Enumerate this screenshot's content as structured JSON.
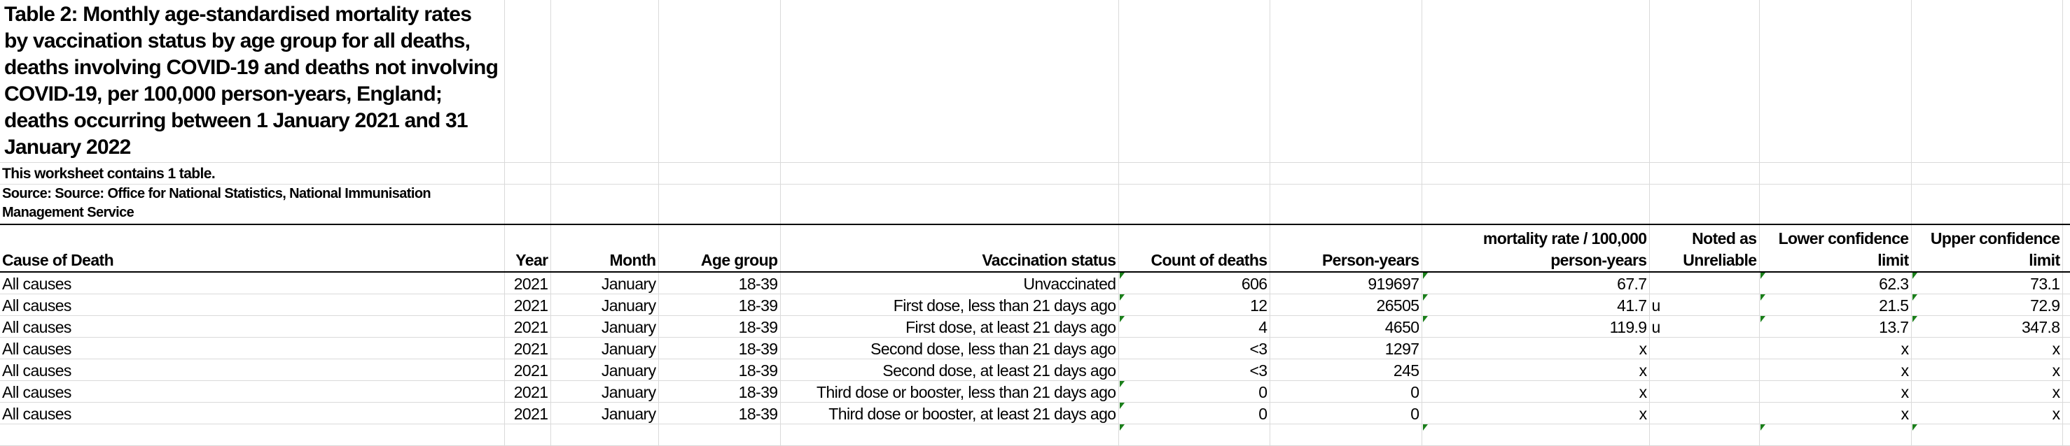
{
  "title": "Table 2: Monthly age-standardised mortality rates by vaccination status by age group for all deaths, deaths involving COVID-19 and deaths not involving COVID-19, per 100,000 person-years, England; deaths occurring between 1 January 2021 and 31 January 2022",
  "note": "This worksheet contains 1 table.",
  "source": "Source: Source: Office for National Statistics, National Immunisation Management Service",
  "flag_color": "#1a7f1a",
  "headers": [
    "Cause of Death",
    "Year",
    "Month",
    "Age group",
    "Vaccination status",
    "Count of deaths",
    "Person-years",
    "mortality rate / 100,000 person-years",
    "Noted as Unreliable",
    "Lower confidence limit",
    "Upper confidence limit"
  ],
  "rows": [
    [
      "All causes",
      "2021",
      "January",
      "18-39",
      "Unvaccinated",
      "606",
      "919697",
      "67.7",
      "",
      "62.3",
      "73.1"
    ],
    [
      "All causes",
      "2021",
      "January",
      "18-39",
      "First dose, less than 21 days ago",
      "12",
      "26505",
      "41.7",
      "u",
      "21.5",
      "72.9"
    ],
    [
      "All causes",
      "2021",
      "January",
      "18-39",
      "First dose, at least 21 days ago",
      "4",
      "4650",
      "119.9",
      "u",
      "13.7",
      "347.8"
    ],
    [
      "All causes",
      "2021",
      "January",
      "18-39",
      "Second dose, less than 21 days ago",
      "<3",
      "1297",
      "x",
      "",
      "x",
      "x"
    ],
    [
      "All causes",
      "2021",
      "January",
      "18-39",
      "Second dose, at least 21 days ago",
      "<3",
      "245",
      "x",
      "",
      "x",
      "x"
    ],
    [
      "All causes",
      "2021",
      "January",
      "18-39",
      "Third dose or booster, less than 21 days ago",
      "0",
      "0",
      "x",
      "",
      "x",
      "x"
    ],
    [
      "All causes",
      "2021",
      "January",
      "18-39",
      "Third dose or booster, at least 21 days ago",
      "0",
      "0",
      "x",
      "",
      "x",
      "x"
    ]
  ]
}
